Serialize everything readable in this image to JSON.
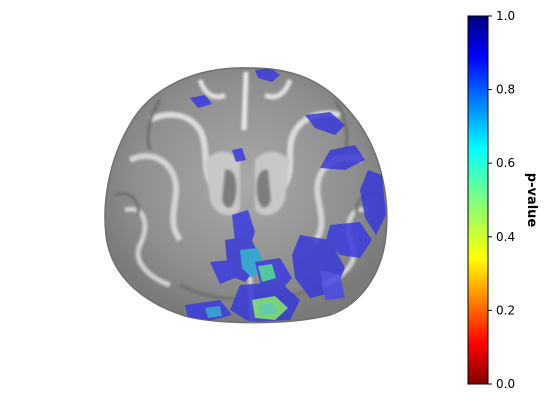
{
  "colorbar": {
    "label": "p-value",
    "colormap": "jet_r",
    "ticks": [
      "0.0",
      "0.2",
      "0.4",
      "0.6",
      "0.8",
      "1.0"
    ],
    "tick_values": [
      0.0,
      0.2,
      0.4,
      0.6,
      0.8,
      1.0
    ],
    "range": [
      0.0,
      1.0
    ]
  },
  "image": {
    "description_type": "axial brain slice (grayscale MRI) with p-value overlay",
    "background_color": "#ffffff"
  }
}
